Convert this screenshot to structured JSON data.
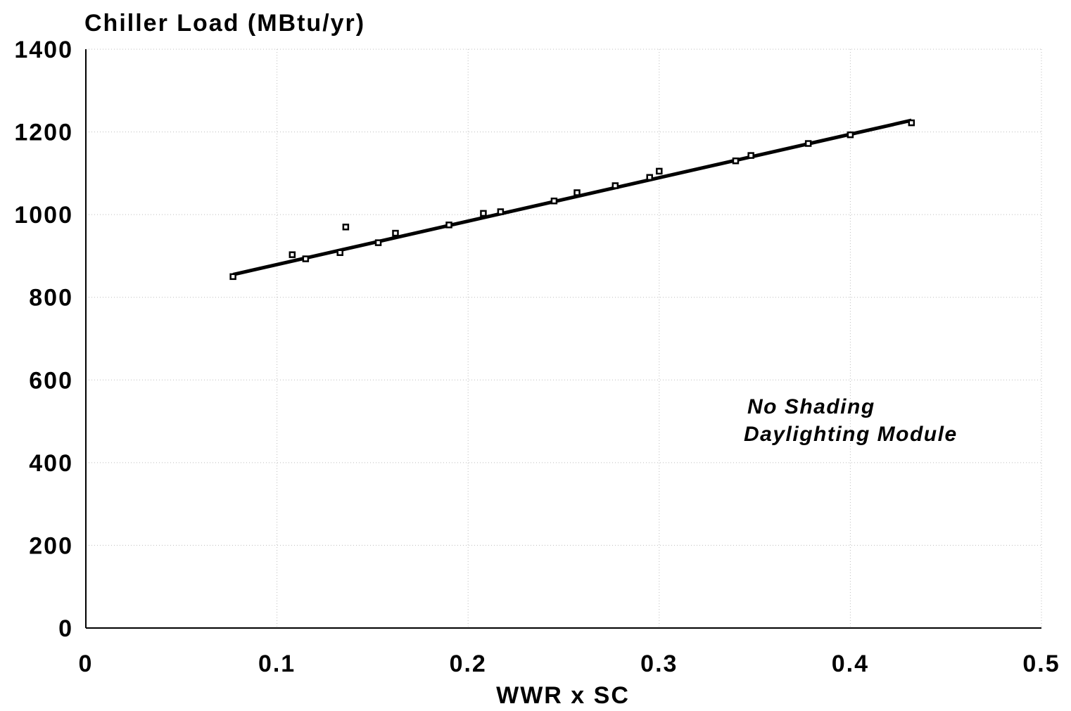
{
  "chart_data": {
    "type": "scatter",
    "title": "",
    "ylabel": "Chiller Load (MBtu/yr)",
    "xlabel": "WWR x SC",
    "xlim": [
      0,
      0.5
    ],
    "ylim": [
      0,
      1400
    ],
    "x_ticks": [
      "0",
      "0.1",
      "0.2",
      "0.3",
      "0.4",
      "0.5"
    ],
    "y_ticks": [
      "0",
      "200",
      "400",
      "600",
      "800",
      "1000",
      "1200",
      "1400"
    ],
    "grid": true,
    "annotations": [
      "No Shading",
      "Daylighting Module"
    ],
    "series": [
      {
        "values": [
          {
            "x": 0.077,
            "y": 850
          },
          {
            "x": 0.108,
            "y": 903
          },
          {
            "x": 0.115,
            "y": 893
          },
          {
            "x": 0.133,
            "y": 908
          },
          {
            "x": 0.136,
            "y": 970
          },
          {
            "x": 0.153,
            "y": 932
          },
          {
            "x": 0.162,
            "y": 955
          },
          {
            "x": 0.19,
            "y": 975
          },
          {
            "x": 0.208,
            "y": 1003
          },
          {
            "x": 0.217,
            "y": 1007
          },
          {
            "x": 0.245,
            "y": 1033
          },
          {
            "x": 0.257,
            "y": 1053
          },
          {
            "x": 0.277,
            "y": 1070
          },
          {
            "x": 0.295,
            "y": 1090
          },
          {
            "x": 0.3,
            "y": 1105
          },
          {
            "x": 0.34,
            "y": 1130
          },
          {
            "x": 0.348,
            "y": 1143
          },
          {
            "x": 0.378,
            "y": 1172
          },
          {
            "x": 0.4,
            "y": 1193
          },
          {
            "x": 0.432,
            "y": 1222
          }
        ]
      }
    ],
    "fit_line": {
      "x": [
        0.077,
        0.432
      ],
      "y": [
        855,
        1228
      ]
    }
  }
}
